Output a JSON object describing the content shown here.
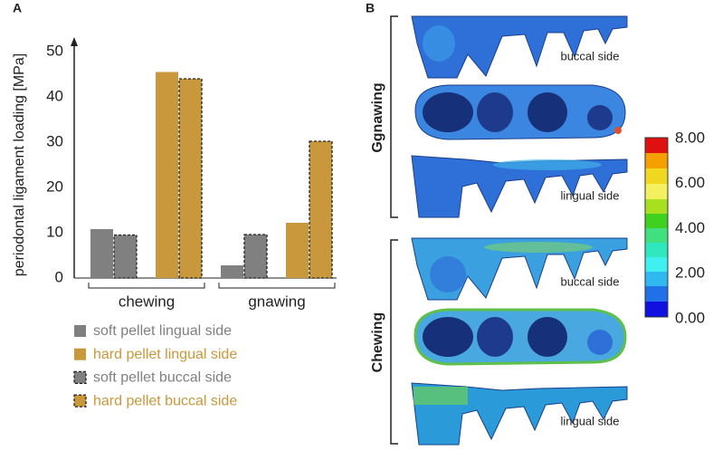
{
  "panel_labels": [
    "A",
    "B"
  ],
  "chart_data": {
    "type": "bar",
    "y_label": "periodontal ligament loading [MPa]",
    "categories": [
      "chewing",
      "gnawing"
    ],
    "series": [
      {
        "name": "soft pellet lingual side",
        "color": "#808080",
        "border": "solid",
        "values": [
          10.8,
          2.8
        ]
      },
      {
        "name": "hard pellet lingual side",
        "color": "#c9973c",
        "border": "solid",
        "values": [
          45.5,
          12.2
        ]
      },
      {
        "name": "soft pellet buccal side",
        "color": "#808080",
        "border": "dashed",
        "values": [
          9.5,
          9.6
        ]
      },
      {
        "name": "hard pellet buccal side",
        "color": "#c9973c",
        "border": "dashed",
        "values": [
          44.0,
          30.2
        ]
      }
    ],
    "ylim": [
      0,
      52
    ],
    "yticks": [
      0,
      10,
      20,
      30,
      40,
      50
    ],
    "grid": false
  },
  "panel_b": {
    "groups": [
      {
        "label": "Ggnawing",
        "views": [
          "buccal side",
          "lingual side"
        ]
      },
      {
        "label": "Chewing",
        "views": [
          "buccal side",
          "lingual side"
        ]
      }
    ],
    "colorbar": {
      "ticks": [
        "8.00",
        "6.00",
        "4.00",
        "2.00",
        "0.00"
      ]
    }
  }
}
